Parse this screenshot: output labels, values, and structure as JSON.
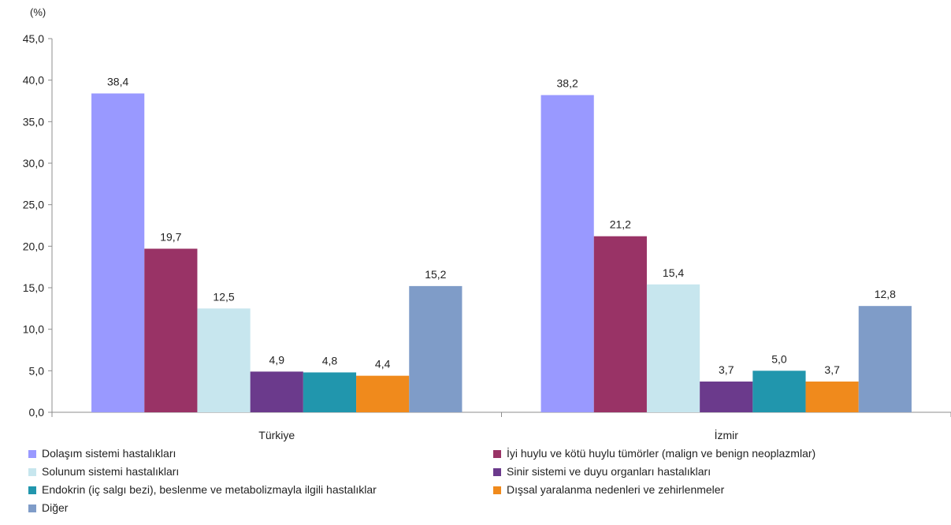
{
  "chart_data": {
    "type": "bar",
    "unit_label": "(%)",
    "categories": [
      "Türkiye",
      "İzmir"
    ],
    "ylim": [
      0,
      45
    ],
    "yticks": [
      "0,0",
      "5,0",
      "10,0",
      "15,0",
      "20,0",
      "25,0",
      "30,0",
      "35,0",
      "40,0",
      "45,0"
    ],
    "grid": false,
    "legend_position": "bottom",
    "series": [
      {
        "name": "Dolaşım sistemi hastalıkları",
        "color": "#9999ff",
        "values": [
          38.4,
          38.2
        ],
        "labels": [
          "38,4",
          "38,2"
        ]
      },
      {
        "name": "İyi huylu ve kötü huylu tümörler (malign ve benign neoplazmlar)",
        "color": "#993366",
        "values": [
          19.7,
          21.2
        ],
        "labels": [
          "19,7",
          "21,2"
        ]
      },
      {
        "name": "Solunum sistemi hastalıkları",
        "color": "#c7e6ee",
        "values": [
          12.5,
          15.4
        ],
        "labels": [
          "12,5",
          "15,4"
        ]
      },
      {
        "name": "Sinir sistemi ve duyu organları hastalıkları",
        "color": "#6b3a8c",
        "values": [
          4.9,
          3.7
        ],
        "labels": [
          "4,9",
          "3,7"
        ]
      },
      {
        "name": "Endokrin (iç salgı bezi), beslenme ve metabolizmayla ilgili hastalıklar",
        "color": "#2196ad",
        "values": [
          4.8,
          5.0
        ],
        "labels": [
          "4,8",
          "5,0"
        ]
      },
      {
        "name": "Dışsal yaralanma nedenleri ve zehirlenmeler",
        "color": "#f08a1c",
        "values": [
          4.4,
          3.7
        ],
        "labels": [
          "4,4",
          "3,7"
        ]
      },
      {
        "name": "Diğer",
        "color": "#7f9cc8",
        "values": [
          15.2,
          12.8
        ],
        "labels": [
          "15,2",
          "12,8"
        ]
      }
    ]
  }
}
